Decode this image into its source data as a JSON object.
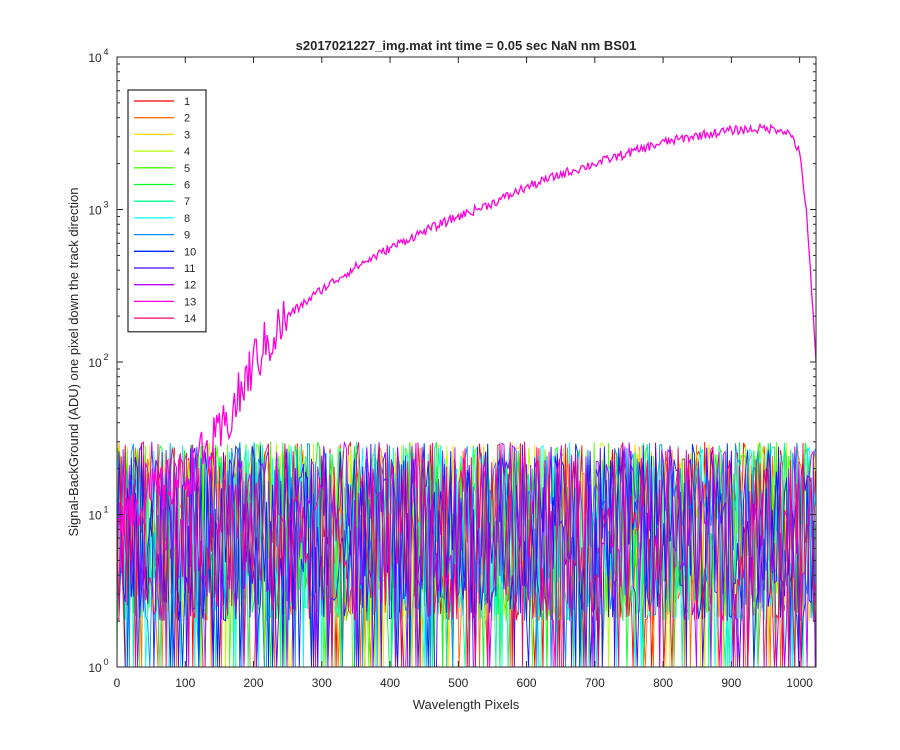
{
  "chart_data": {
    "type": "line",
    "title": "s2017021227_img.mat int time = 0.05 sec  NaN nm BS01",
    "xlabel": "Wavelength Pixels",
    "ylabel": "Signal-BackGround (ADU) one pixel down the track direction",
    "xlim": [
      0,
      1024
    ],
    "ylim": [
      1,
      10000
    ],
    "yscale": "log",
    "xticks": [
      "0",
      "100",
      "200",
      "300",
      "400",
      "500",
      "600",
      "700",
      "800",
      "900",
      "1000"
    ],
    "xtick_values": [
      0,
      100,
      200,
      300,
      400,
      500,
      600,
      700,
      800,
      900,
      1000
    ],
    "yticks": [
      {
        "base": "10",
        "exp": "0",
        "value": 1
      },
      {
        "base": "10",
        "exp": "1",
        "value": 10
      },
      {
        "base": "10",
        "exp": "2",
        "value": 100
      },
      {
        "base": "10",
        "exp": "3",
        "value": 1000
      },
      {
        "base": "10",
        "exp": "4",
        "value": 10000
      }
    ],
    "grid": false,
    "legend_position": "top-left",
    "series": [
      {
        "name": "1",
        "color": "#ff0000",
        "kind": "noise"
      },
      {
        "name": "2",
        "color": "#ff6d00",
        "kind": "noise"
      },
      {
        "name": "3",
        "color": "#ffdb00",
        "kind": "noise"
      },
      {
        "name": "4",
        "color": "#b6ff00",
        "kind": "noise"
      },
      {
        "name": "5",
        "color": "#49ff00",
        "kind": "noise"
      },
      {
        "name": "6",
        "color": "#00ff24",
        "kind": "noise"
      },
      {
        "name": "7",
        "color": "#00ff92",
        "kind": "noise"
      },
      {
        "name": "8",
        "color": "#00ffff",
        "kind": "noise"
      },
      {
        "name": "9",
        "color": "#0092ff",
        "kind": "noise"
      },
      {
        "name": "10",
        "color": "#0024ff",
        "kind": "noise"
      },
      {
        "name": "11",
        "color": "#4900ff",
        "kind": "noise"
      },
      {
        "name": "12",
        "color": "#b600ff",
        "kind": "noise"
      },
      {
        "name": "13",
        "color": "#ff00db",
        "kind": "signal",
        "x": [
          0,
          100,
          150,
          180,
          200,
          250,
          300,
          350,
          400,
          450,
          500,
          550,
          600,
          650,
          700,
          750,
          800,
          850,
          900,
          950,
          975,
          990,
          1000,
          1010,
          1024
        ],
        "y": [
          10,
          18,
          32,
          60,
          100,
          200,
          300,
          420,
          560,
          720,
          900,
          1100,
          1400,
          1700,
          2000,
          2350,
          2750,
          3050,
          3300,
          3400,
          3350,
          3000,
          2300,
          1000,
          100
        ]
      },
      {
        "name": "14",
        "color": "#ff006d",
        "kind": "noise"
      }
    ],
    "noise_level_typical": [
      2,
      30
    ]
  }
}
